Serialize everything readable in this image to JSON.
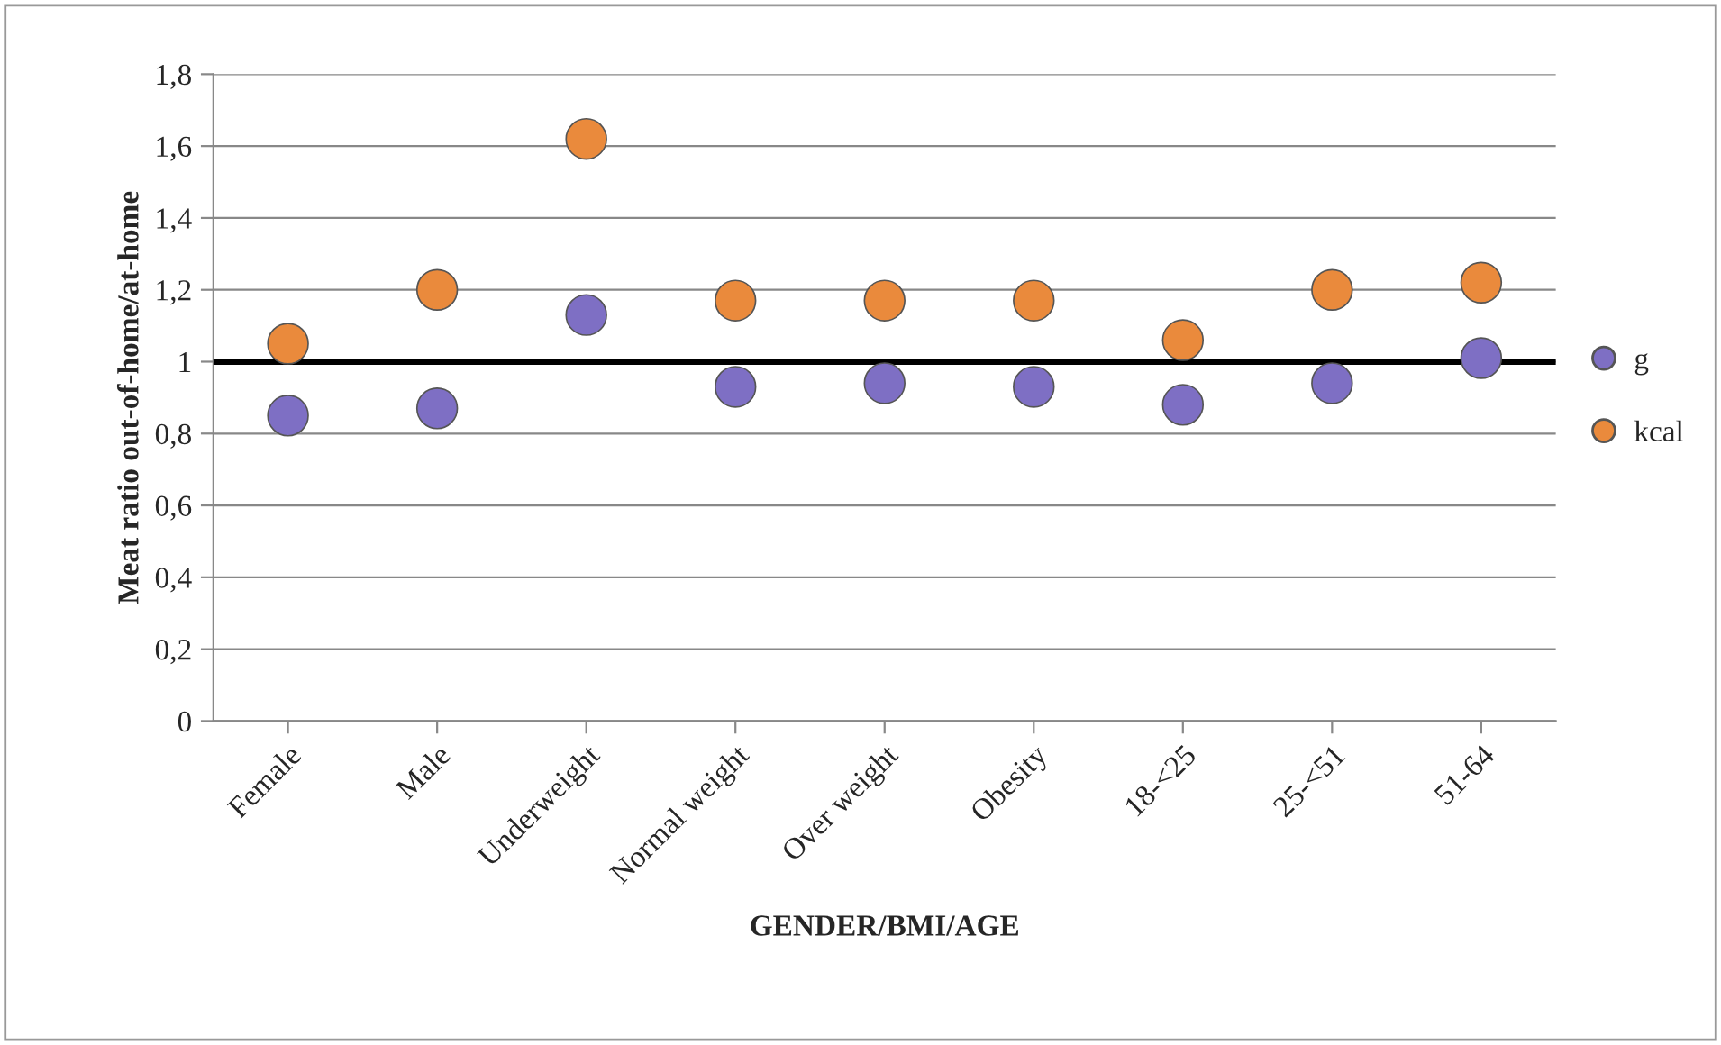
{
  "chart_data": {
    "type": "scatter",
    "xlabel": "GENDER/BMI/AGE",
    "ylabel": "Meat ratio out-of-home/at-home",
    "categories": [
      "Female",
      "Male",
      "Underweight",
      "Normal weight",
      "Over weight",
      "Obesity",
      "18-<25",
      "25-<51",
      "51-64"
    ],
    "series": [
      {
        "name": "g",
        "color": "#7e6fc4",
        "values": [
          0.85,
          0.87,
          1.13,
          0.93,
          0.94,
          0.93,
          0.88,
          0.94,
          1.01
        ]
      },
      {
        "name": "kcal",
        "color": "#ea8a3c",
        "values": [
          1.05,
          1.2,
          1.62,
          1.17,
          1.17,
          1.17,
          1.06,
          1.2,
          1.22
        ]
      }
    ],
    "ylim": [
      0,
      1.8
    ],
    "yticks": [
      0,
      {
        "value": 0.2,
        "label": "0,2"
      },
      {
        "value": 0.4,
        "label": "0,4"
      },
      {
        "value": 0.6,
        "label": "0,6"
      },
      {
        "value": 0.8,
        "label": "0,8"
      },
      1,
      {
        "value": 1.2,
        "label": "1,2"
      },
      {
        "value": 1.4,
        "label": "1,4"
      },
      {
        "value": 1.6,
        "label": "1,6"
      },
      {
        "value": 1.8,
        "label": "1,8"
      }
    ],
    "ref_lines": [
      {
        "axis": "y",
        "value": 1,
        "color": "#000000"
      }
    ],
    "grid": "y",
    "legend": "right",
    "marker": "circle"
  }
}
